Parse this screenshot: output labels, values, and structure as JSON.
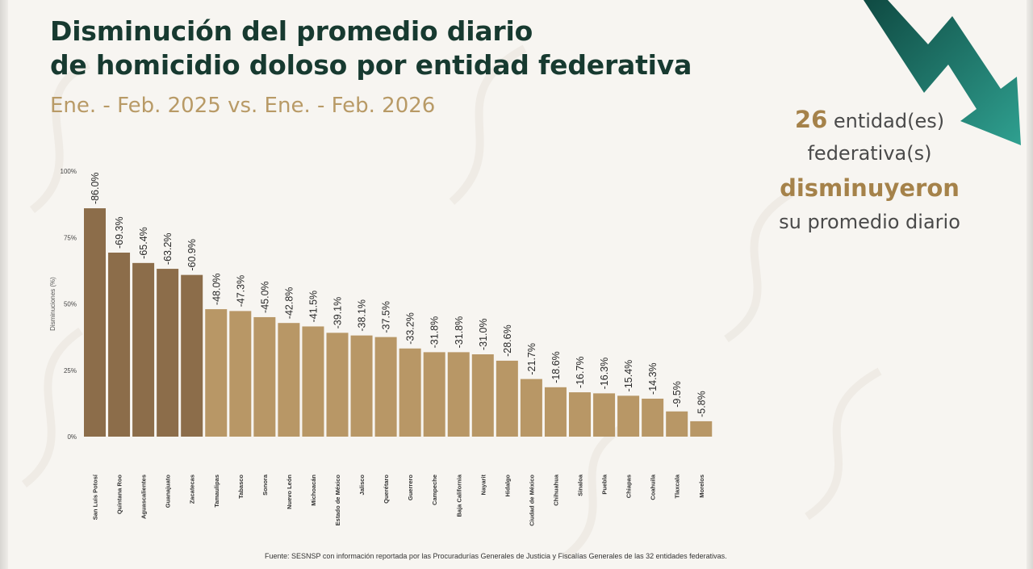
{
  "header": {
    "title_line1": "Disminución del promedio diario",
    "title_line2": "de homicidio doloso por entidad federativa",
    "subtitle": "Ene. - Feb. 2025 vs. Ene. - Feb. 2026"
  },
  "callout": {
    "count": "26",
    "line1_rest": " entidad(es)",
    "line2": "federativa(s)",
    "line3": "disminuyeron",
    "line4": "su promedio diario"
  },
  "source": "Fuente: SESNSP con información reportada por las Procuradurías Generales de Justicia y Fiscalías Generales de las 32 entidades federativas.",
  "colors": {
    "title": "#173a30",
    "accent_gold": "#a5824a",
    "bar_dark": "#8c6d4a",
    "bar_light": "#b89766",
    "arrow_dark": "#0f4a42",
    "arrow_light": "#2fa090"
  },
  "chart_data": {
    "type": "bar",
    "ylabel": "Disminuciones (%)",
    "ylim": [
      0,
      100
    ],
    "yticks": [
      0,
      25,
      50,
      75,
      100
    ],
    "ytick_labels": [
      "0%",
      "25%",
      "50%",
      "75%",
      "100%"
    ],
    "grid": false,
    "categories": [
      "San Luis Potosí",
      "Quintana Roo",
      "Aguascalientes",
      "Guanajuato",
      "Zacatecas",
      "Tamaulipas",
      "Tabasco",
      "Sonora",
      "Nuevo León",
      "Michoacán",
      "Estado de México",
      "Jalisco",
      "Querétaro",
      "Guerrero",
      "Campeche",
      "Baja California",
      "Nayarit",
      "Hidalgo",
      "Ciudad de México",
      "Chihuahua",
      "Sinaloa",
      "Puebla",
      "Chiapas",
      "Coahuila",
      "Tlaxcala",
      "Morelos"
    ],
    "values": [
      86.0,
      69.3,
      65.4,
      63.2,
      60.9,
      48.0,
      47.3,
      45.0,
      42.8,
      41.5,
      39.1,
      38.1,
      37.5,
      33.2,
      31.8,
      31.8,
      31.0,
      28.6,
      21.7,
      18.6,
      16.7,
      16.3,
      15.4,
      14.3,
      9.5,
      5.8
    ],
    "data_labels": [
      "-86.0%",
      "-69.3%",
      "-65.4%",
      "-63.2%",
      "-60.9%",
      "-48.0%",
      "-47.3%",
      "-45.0%",
      "-42.8%",
      "-41.5%",
      "-39.1%",
      "-38.1%",
      "-37.5%",
      "-33.2%",
      "-31.8%",
      "-31.8%",
      "-31.0%",
      "-28.6%",
      "-21.7%",
      "-18.6%",
      "-16.7%",
      "-16.3%",
      "-15.4%",
      "-14.3%",
      "-9.5%",
      "-5.8%"
    ],
    "highlight_count": 5
  }
}
